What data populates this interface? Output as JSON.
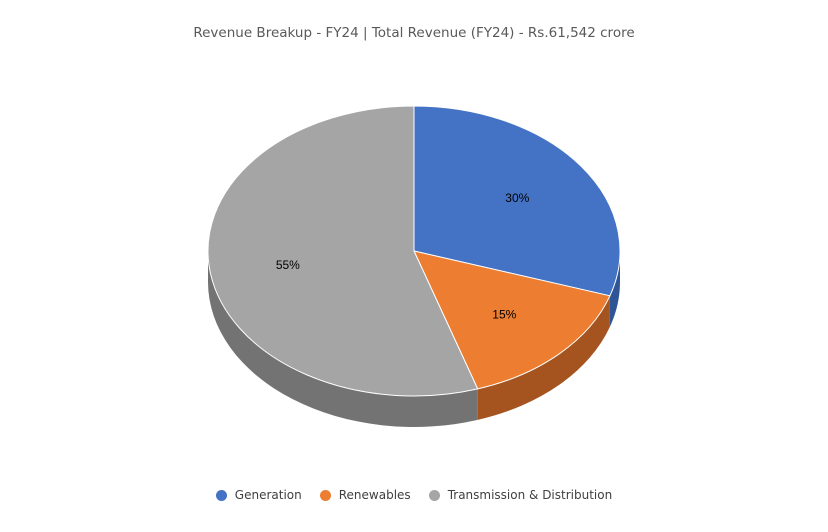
{
  "chart_data": {
    "type": "pie",
    "title": "Revenue Breakup - FY24 | Total Revenue (FY24) - Rs.61,542 crore",
    "categories": [
      "Generation",
      "Renewables",
      "Transmission & Distribution"
    ],
    "values": [
      30,
      15,
      55
    ],
    "labels": [
      "30%",
      "15%",
      "55%"
    ],
    "colors": [
      "#4472C4",
      "#ED7D31",
      "#A5A5A5"
    ],
    "side_colors": [
      "#2F5597",
      "#A5541F",
      "#737373"
    ],
    "legend_position": "bottom",
    "style": "3d"
  }
}
